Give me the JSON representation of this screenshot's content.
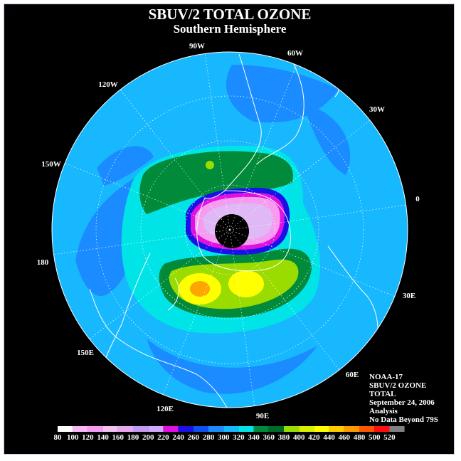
{
  "title": "SBUV/2 TOTAL OZONE",
  "subtitle": "Southern Hemisphere",
  "longitude_labels": [
    "90W",
    "60W",
    "30W",
    "0",
    "30E",
    "60E",
    "90E",
    "120E",
    "150E",
    "180",
    "150W",
    "120W"
  ],
  "info": {
    "satellite": "NOAA-17",
    "product": "SBUV/2 OZONE",
    "quantity": "TOTAL",
    "date": "September 24, 2006",
    "kind": "Analysis",
    "note": "No Data Beyond 79S"
  },
  "colorbar": {
    "ticks": [
      "80",
      "100",
      "120",
      "140",
      "160",
      "180",
      "200",
      "220",
      "240",
      "260",
      "280",
      "300",
      "320",
      "340",
      "360",
      "380",
      "400",
      "420",
      "440",
      "460",
      "480",
      "500",
      "520"
    ],
    "colors": [
      "#ffffff",
      "#f7b8f3",
      "#f59cf0",
      "#f3c1f0",
      "#e6a8ee",
      "#c39af0",
      "#d0a8ff",
      "#e010e0",
      "#1a10e8",
      "#1050f0",
      "#1a8cff",
      "#18b8ff",
      "#00e4e8",
      "#008a3a",
      "#006a2a",
      "#9adc00",
      "#d8f000",
      "#ffff00",
      "#ffcc00",
      "#ff9900",
      "#ff5500",
      "#ff1010",
      "#808080"
    ]
  },
  "map_colors": {
    "ocean_base": "#18b8ff",
    "blue_band": "#1a8cff",
    "cyan": "#00e4e8",
    "dark_green": "#008a3a",
    "deep_green": "#006a2a",
    "green_yellow": "#9adc00",
    "yellow": "#ffff00",
    "orange": "#ffa500",
    "hole_edge_blue": "#1a10e8",
    "hole_magenta": "#e010e0",
    "hole_pink": "#f59cf0",
    "hole_lilac": "#e0b8f5",
    "no_data": "#000000",
    "coast": "#ffffff"
  }
}
